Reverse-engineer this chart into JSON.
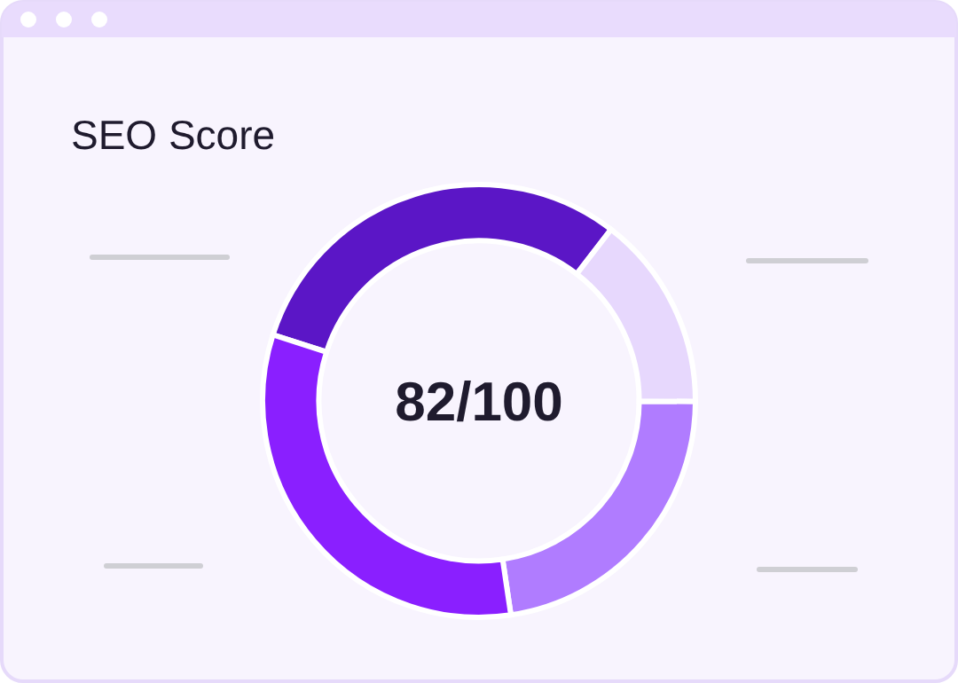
{
  "chart_data": {
    "type": "donut",
    "title": "SEO Score",
    "categories": [
      null,
      null,
      null,
      null
    ],
    "values": [
      30.5,
      14.6,
      22.6,
      32.3
    ],
    "colors": [
      "#5b16c6",
      "#e7d8fd",
      "#b07cff",
      "#8a1fff"
    ],
    "annotations": [
      "82/100"
    ]
  }
}
